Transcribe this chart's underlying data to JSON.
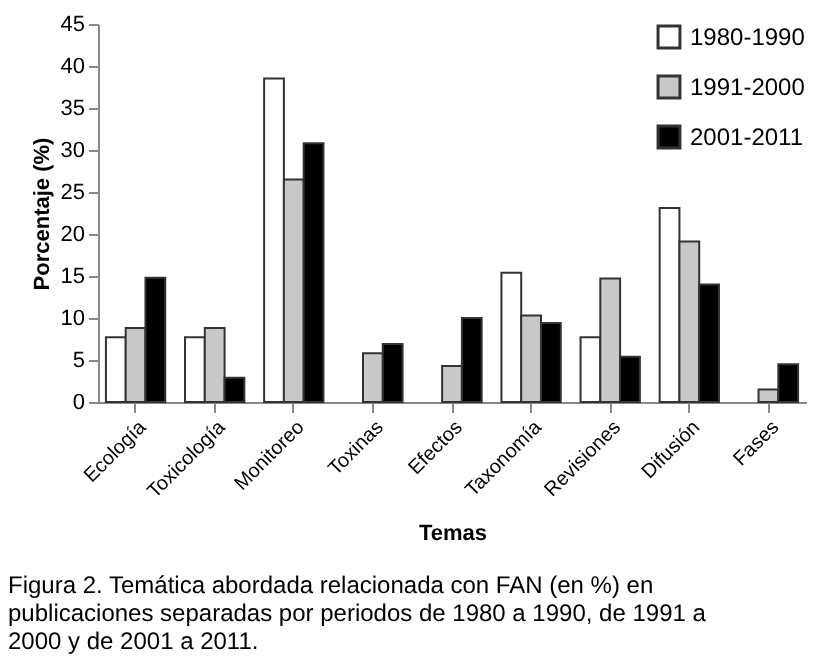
{
  "chart_data": {
    "type": "bar",
    "categories": [
      "Ecología",
      "Toxicología",
      "Monitoreo",
      "Toxinas",
      "Efectos",
      "Taxonomía",
      "Revisiones",
      "Difusión",
      "Fases"
    ],
    "series": [
      {
        "name": "1980-1990",
        "color": "#ffffff",
        "values": [
          7.7,
          7.7,
          38.5,
          0,
          0,
          15.4,
          7.7,
          23.1,
          0
        ]
      },
      {
        "name": "1991-2000",
        "color": "#c8c8c8",
        "values": [
          8.8,
          8.8,
          26.5,
          5.8,
          4.3,
          10.3,
          14.7,
          19.1,
          1.5
        ]
      },
      {
        "name": "2001-2011",
        "color": "#000000",
        "values": [
          14.8,
          2.9,
          30.8,
          6.9,
          10.0,
          9.4,
          5.4,
          14.0,
          4.5
        ]
      }
    ],
    "xlabel": "Temas",
    "ylabel": "Porcentaje (%)",
    "ylim": [
      0,
      45
    ],
    "yticks": [
      0,
      5,
      10,
      15,
      20,
      25,
      30,
      35,
      40,
      45
    ],
    "grid": false,
    "legend": "top right",
    "annotations": [
      "Figura 2. Temática abordada relacionada con FAN (en %) en publicaciones separadas por periodos de 1980 a 1990, de 1991 a 2000 y de 2001 a 2011."
    ]
  }
}
